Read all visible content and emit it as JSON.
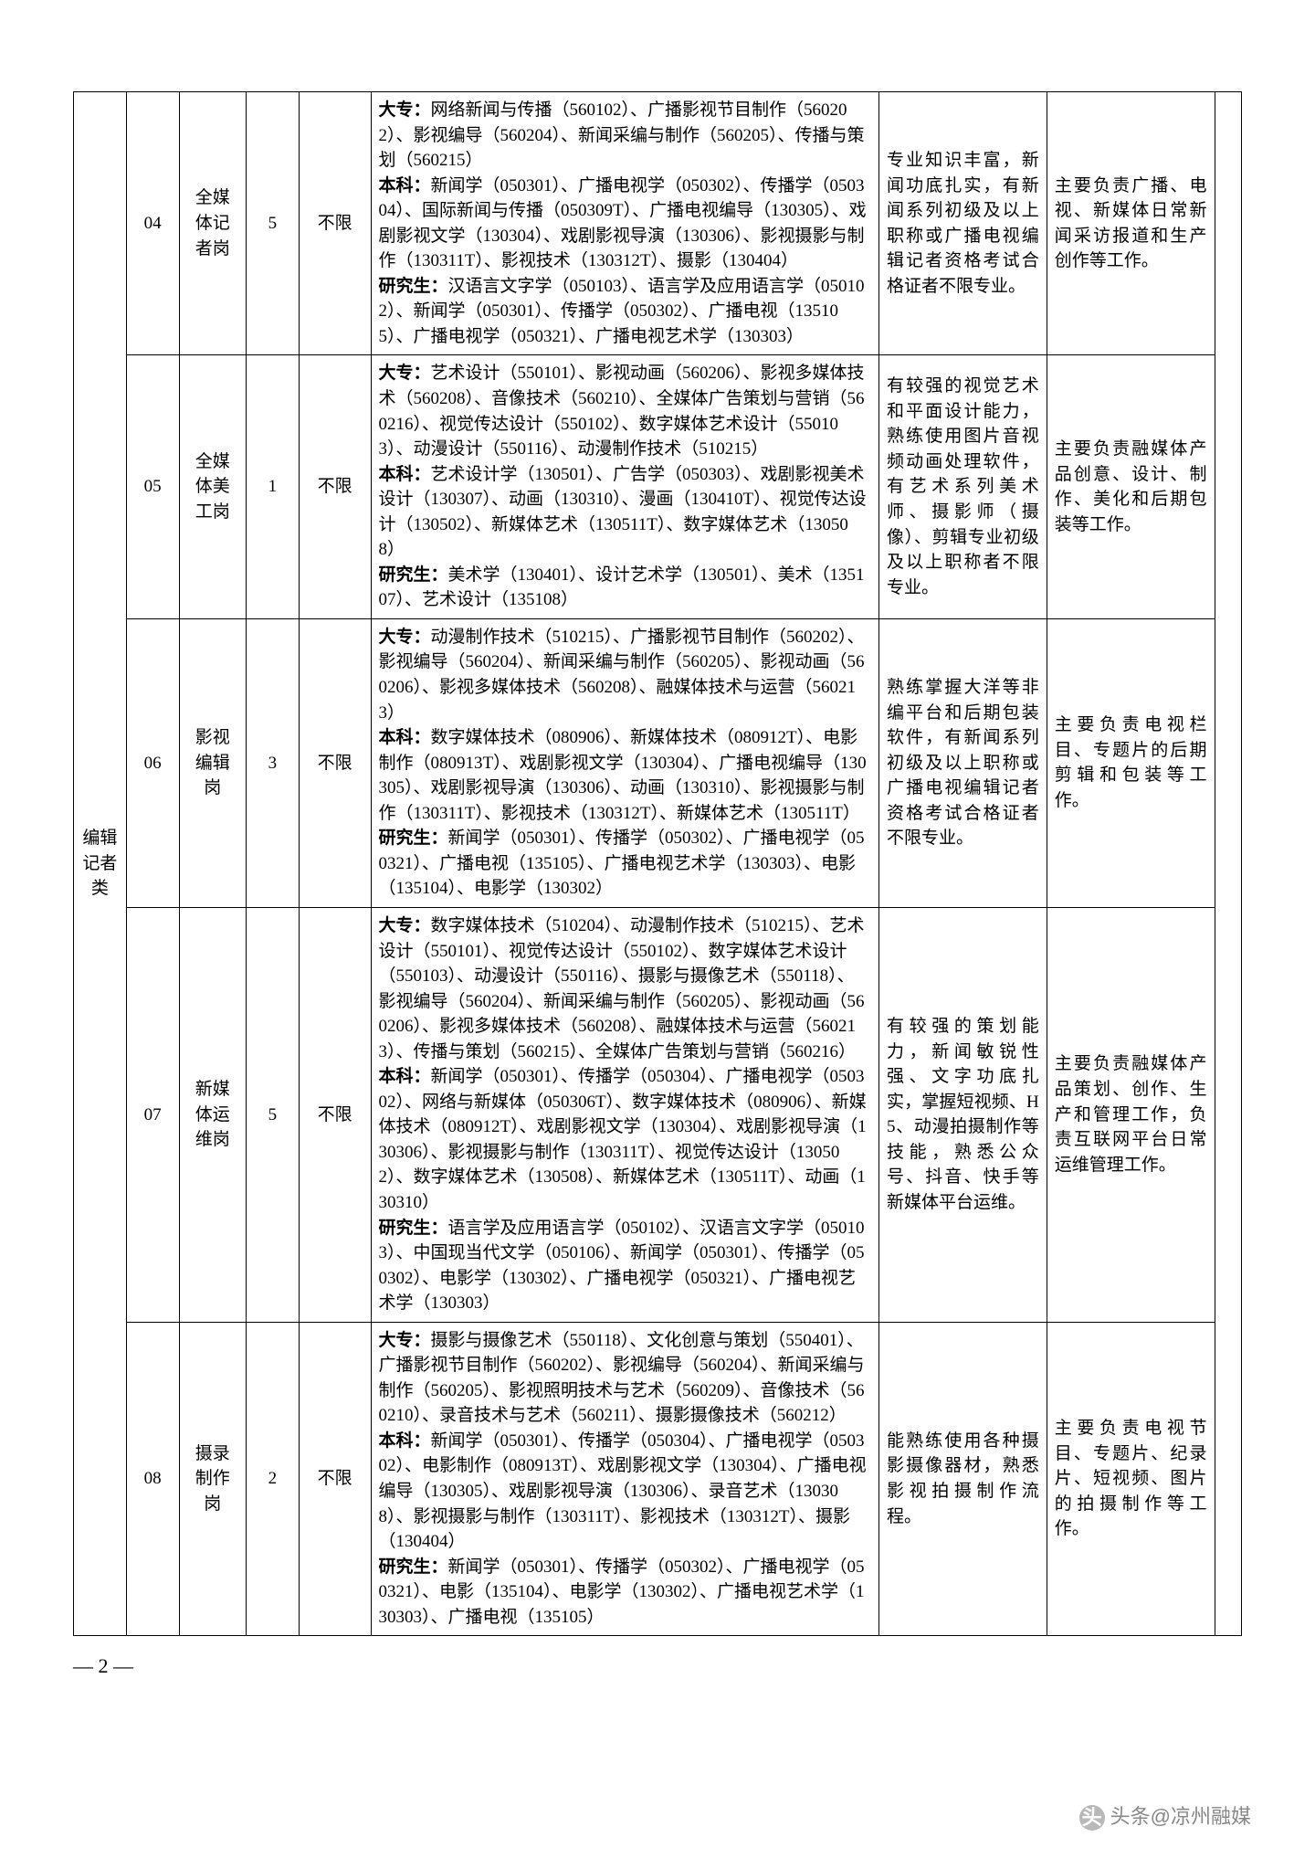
{
  "page_number": "— 2 —",
  "watermark": {
    "prefix": "头条",
    "suffix": "@凉州融媒"
  },
  "columns": {
    "c1_width": 55,
    "c2_width": 55,
    "c3_width": 70,
    "c4_width": 55,
    "c5_width": 75,
    "c6_width": 530,
    "c7_width": 175,
    "c8_width": 175,
    "c9_width": 28
  },
  "category": "编辑记者类",
  "rows": [
    {
      "code": "04",
      "post": "全媒体记者岗",
      "count": "5",
      "limit": "不限",
      "major": "大专：网络新闻与传播（560102）、广播影视节目制作（560202）、影视编导（560204）、新闻采编与制作（560205）、传播与策划（560215）\n本科：新闻学（050301）、广播电视学（050302）、传播学（050304）、国际新闻与传播（050309T）、广播电视编导（130305）、戏剧影视文学（130304）、戏剧影视导演（130306）、影视摄影与制作（130311T）、影视技术（130312T）、摄影（130404）\n研究生：汉语言文字学（050103）、语言学及应用语言学（050102）、新闻学（050301）、传播学（050302）、广播电视（135105）、广播电视学（050321）、广播电视艺术学（130303）",
      "cond": "专业知识丰富，新闻功底扎实，有新闻系列初级及以上职称或广播电视编辑记者资格考试合格证者不限专业。",
      "duty": "主要负责广播、电视、新媒体日常新闻采访报道和生产创作等工作。"
    },
    {
      "code": "05",
      "post": "全媒体美工岗",
      "count": "1",
      "limit": "不限",
      "major": "大专：艺术设计（550101）、影视动画（560206）、影视多媒体技术（560208）、音像技术（560210）、全媒体广告策划与营销（560216）、视觉传达设计（550102）、数字媒体艺术设计（550103）、动漫设计（550116）、动漫制作技术（510215）\n本科：艺术设计学（130501）、广告学（050303）、戏剧影视美术设计（130307）、动画（130310）、漫画（130410T）、视觉传达设计（130502）、新媒体艺术（130511T）、数字媒体艺术（130508）\n研究生：美术学（130401）、设计艺术学（130501）、美术（135107）、艺术设计（135108）",
      "cond": "有较强的视觉艺术和平面设计能力，熟练使用图片音视频动画处理软件，有艺术系列美术师、摄影师（摄像）、剪辑专业初级及以上职称者不限专业。",
      "duty": "主要负责融媒体产品创意、设计、制作、美化和后期包装等工作。"
    },
    {
      "code": "06",
      "post": "影视编辑岗",
      "count": "3",
      "limit": "不限",
      "major": "大专：动漫制作技术（510215）、广播影视节目制作（560202）、影视编导（560204）、新闻采编与制作（560205）、影视动画（560206）、影视多媒体技术（560208）、融媒体技术与运营（560213）\n本科：数字媒体技术（080906）、新媒体技术（080912T）、电影制作（080913T）、戏剧影视文学（130304）、广播电视编导（130305）、戏剧影视导演（130306）、动画（130310）、影视摄影与制作（130311T）、影视技术（130312T）、新媒体艺术（130511T）\n研究生：新闻学（050301）、传播学（050302）、广播电视学（050321）、广播电视（135105）、广播电视艺术学（130303）、电影（135104）、电影学（130302）",
      "cond": "熟练掌握大洋等非编平台和后期包装软件，有新闻系列初级及以上职称或广播电视编辑记者资格考试合格证者不限专业。",
      "duty": "主要负责电视栏目、专题片的后期剪辑和包装等工作。"
    },
    {
      "code": "07",
      "post": "新媒体运维岗",
      "count": "5",
      "limit": "不限",
      "major": "大专：数字媒体技术（510204）、动漫制作技术（510215）、艺术设计（550101）、视觉传达设计（550102）、数字媒体艺术设计（550103）、动漫设计（550116）、摄影与摄像艺术（550118）、影视编导（560204）、新闻采编与制作（560205）、影视动画（560206）、影视多媒体技术（560208）、融媒体技术与运营（560213）、传播与策划（560215）、全媒体广告策划与营销（560216）\n本科：新闻学（050301）、传播学（050304）、广播电视学（050302）、网络与新媒体（050306T）、数字媒体技术（080906）、新媒体技术（080912T）、戏剧影视文学（130304）、戏剧影视导演（130306）、影视摄影与制作（130311T）、视觉传达设计（130502）、数字媒体艺术（130508）、新媒体艺术（130511T）、动画（130310）\n研究生：语言学及应用语言学（050102）、汉语言文字学（050103）、中国现当代文学（050106）、新闻学（050301）、传播学（050302）、电影学（130302）、广播电视学（050321）、广播电视艺术学（130303）",
      "cond": "有较强的策划能力，新闻敏锐性强、文字功底扎实，掌握短视频、H5、动漫拍摄制作等技能，熟悉公众号、抖音、快手等新媒体平台运维。",
      "duty": "主要负责融媒体产品策划、创作、生产和管理工作，负责互联网平台日常运维管理工作。"
    },
    {
      "code": "08",
      "post": "摄录制作岗",
      "count": "2",
      "limit": "不限",
      "major": "大专：摄影与摄像艺术（550118）、文化创意与策划（550401）、广播影视节目制作（560202）、影视编导（560204）、新闻采编与制作（560205）、影视照明技术与艺术（560209）、音像技术（560210）、录音技术与艺术（560211）、摄影摄像技术（560212）\n本科：新闻学（050301）、传播学（050304）、广播电视学（050302）、电影制作（080913T）、戏剧影视文学（130304）、广播电视编导（130305）、戏剧影视导演（130306）、录音艺术（130308）、影视摄影与制作（130311T）、影视技术（130312T）、摄影（130404）\n研究生：新闻学（050301）、传播学（050302）、广播电视学（050321）、电影（135104）、电影学（130302）、广播电视艺术学（130303）、广播电视（135105）",
      "cond": "能熟练使用各种摄影摄像器材，熟悉影视拍摄制作流程。",
      "duty": "主要负责电视节目、专题片、纪录片、短视频、图片的拍摄制作等工作。"
    }
  ]
}
